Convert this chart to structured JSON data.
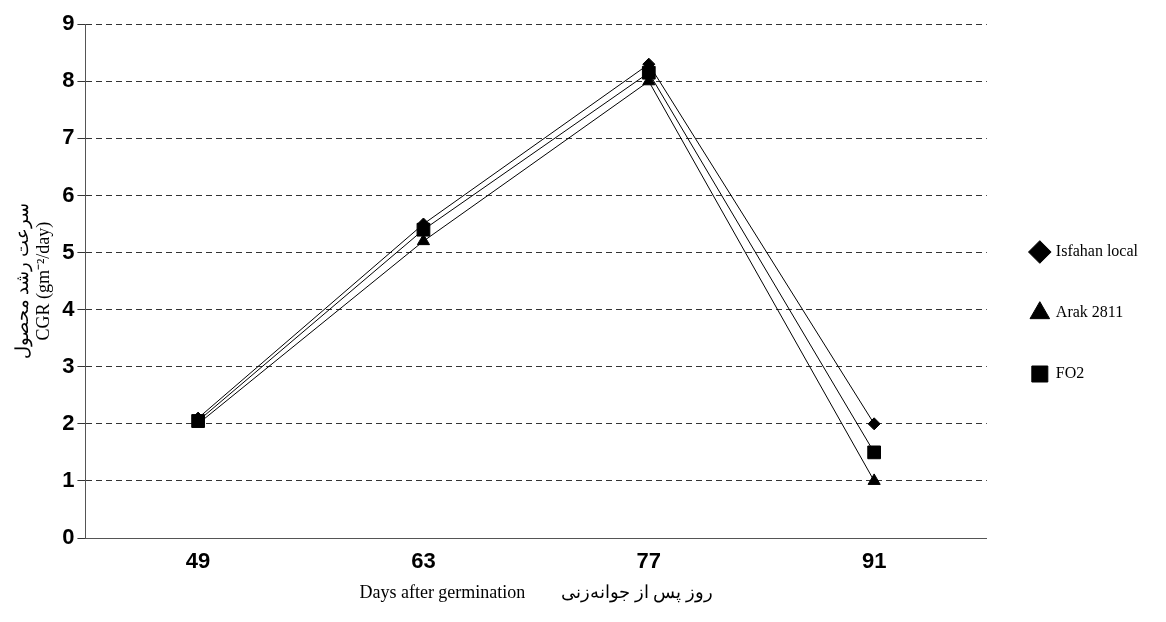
{
  "chart_data": {
    "type": "line",
    "categories": [
      "49",
      "63",
      "77",
      "91"
    ],
    "xlabel": "Days after germination        روز پس از جوانه‌زنی",
    "ylabel": [
      "سرعت رشد محصول",
      "CGR (gm⁻²/day)"
    ],
    "ylim": [
      0,
      9
    ],
    "yticks": [
      0,
      1,
      2,
      3,
      4,
      5,
      6,
      7,
      8,
      9
    ],
    "grid": "y",
    "legend": "right",
    "line_style": "solid",
    "series": [
      {
        "name": "Isfahan local",
        "color": "#000000",
        "marker": "diamond",
        "values": [
          2.1,
          5.5,
          8.3,
          2.0
        ]
      },
      {
        "name": "Arak 2811",
        "color": "#000000",
        "marker": "triangle",
        "values": [
          2.0,
          5.2,
          8.0,
          1.0
        ]
      },
      {
        "name": "FO2",
        "color": "#000000",
        "marker": "square",
        "values": [
          2.05,
          5.4,
          8.15,
          1.5
        ]
      }
    ]
  }
}
